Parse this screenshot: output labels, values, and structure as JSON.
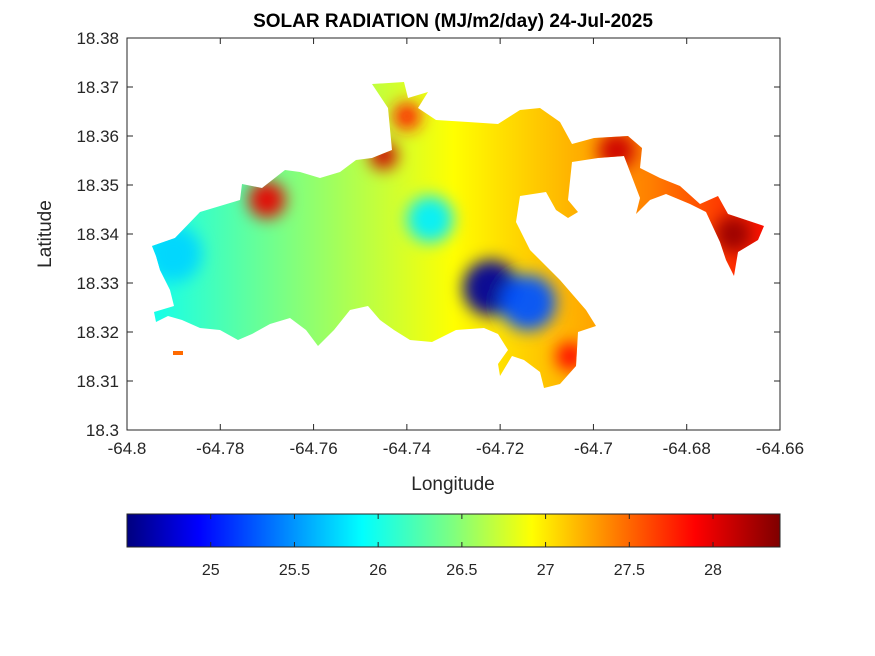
{
  "chart_data": {
    "type": "heatmap",
    "title": "SOLAR RADIATION (MJ/m2/day) 24-Jul-2025",
    "xlabel": "Longitude",
    "ylabel": "Latitude",
    "xlim": [
      -64.8,
      -64.66
    ],
    "ylim": [
      18.3,
      18.38
    ],
    "x_ticks": [
      "-64.8",
      "-64.78",
      "-64.76",
      "-64.74",
      "-64.72",
      "-64.7",
      "-64.68",
      "-64.66"
    ],
    "y_ticks": [
      "18.3",
      "18.31",
      "18.32",
      "18.33",
      "18.34",
      "18.35",
      "18.36",
      "18.37",
      "18.38"
    ],
    "colormap": "jet",
    "colorbar": {
      "orientation": "horizontal",
      "placement": "bottom",
      "range": [
        24.5,
        28.4
      ],
      "ticks": [
        "25",
        "25.5",
        "26",
        "26.5",
        "27",
        "27.5",
        "28"
      ]
    },
    "features": [
      {
        "lon": -64.722,
        "lat": 18.329,
        "value": 24.6,
        "spread": 0.006
      },
      {
        "lon": -64.714,
        "lat": 18.326,
        "value": 25.3,
        "spread": 0.006
      },
      {
        "lon": -64.735,
        "lat": 18.343,
        "value": 25.9,
        "spread": 0.005
      },
      {
        "lon": -64.79,
        "lat": 18.336,
        "value": 25.8,
        "spread": 0.006
      },
      {
        "lon": -64.77,
        "lat": 18.347,
        "value": 28.0,
        "spread": 0.004
      },
      {
        "lon": -64.745,
        "lat": 18.356,
        "value": 28.1,
        "spread": 0.003
      },
      {
        "lon": -64.705,
        "lat": 18.315,
        "value": 27.9,
        "spread": 0.003
      },
      {
        "lon": -64.67,
        "lat": 18.34,
        "value": 28.3,
        "spread": 0.004
      },
      {
        "lon": -64.695,
        "lat": 18.357,
        "value": 28.1,
        "spread": 0.004
      },
      {
        "lon": -64.74,
        "lat": 18.364,
        "value": 27.8,
        "spread": 0.003
      }
    ]
  }
}
